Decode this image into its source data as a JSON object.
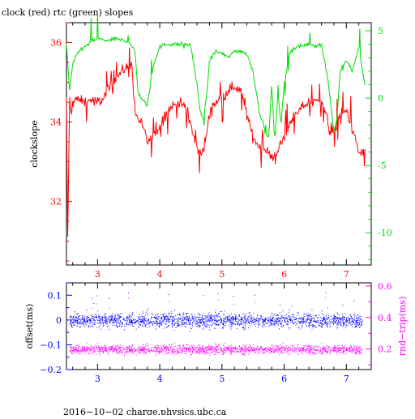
{
  "colors": {
    "frame": "#000000",
    "clock": "#ff0000",
    "rtc": "#00dd00",
    "offset": "#0000ff",
    "roundtrip": "#ff00ff"
  },
  "chart_data": [
    {
      "type": "line",
      "title": "clock (red) rtc (green) slopes",
      "ylabel": "clockslope",
      "x_ticks": [
        "3",
        "4",
        "5",
        "6",
        "7"
      ],
      "x_tick_values": [
        3,
        4,
        5,
        6,
        7
      ],
      "xlim": [
        2.5,
        7.4
      ],
      "y_left_ticks": [
        "32",
        "34",
        "36"
      ],
      "y_left_tick_values": [
        32,
        34,
        36
      ],
      "ylim_left": [
        30.4,
        36.5
      ],
      "y_right_ticks": [
        "5",
        "0",
        "-5",
        "-10"
      ],
      "y_right_tick_values": [
        5,
        0,
        -5,
        -10
      ],
      "ylim_right": [
        -12.4,
        5.6
      ],
      "series": [
        {
          "name": "clock",
          "axis": "left",
          "x": [
            2.5,
            2.52,
            2.55,
            2.58,
            2.62,
            2.7,
            2.8,
            2.9,
            3.0,
            3.1,
            3.2,
            3.3,
            3.4,
            3.5,
            3.55,
            3.6,
            3.7,
            3.8,
            3.9,
            4.0,
            4.1,
            4.2,
            4.3,
            4.4,
            4.5,
            4.6,
            4.7,
            4.8,
            4.9,
            5.0,
            5.1,
            5.2,
            5.3,
            5.4,
            5.5,
            5.6,
            5.7,
            5.8,
            5.9,
            6.0,
            6.1,
            6.2,
            6.3,
            6.4,
            6.5,
            6.6,
            6.7,
            6.75,
            6.8,
            6.9,
            7.0,
            7.1,
            7.2,
            7.3
          ],
          "values": [
            34.55,
            31.0,
            34.6,
            34.1,
            34.6,
            34.55,
            34.5,
            34.55,
            34.5,
            34.6,
            34.9,
            35.1,
            35.3,
            35.4,
            35.5,
            34.2,
            34.0,
            33.5,
            33.6,
            33.9,
            34.2,
            34.4,
            34.5,
            34.4,
            33.9,
            33.3,
            33.2,
            34.2,
            34.5,
            34.6,
            34.8,
            34.9,
            34.8,
            34.2,
            33.6,
            33.4,
            33.3,
            33.1,
            33.3,
            33.6,
            34.0,
            34.2,
            34.4,
            34.5,
            34.5,
            34.6,
            34.0,
            33.7,
            33.8,
            34.2,
            34.3,
            33.8,
            33.2,
            33.3
          ]
        },
        {
          "name": "rtc",
          "axis": "right",
          "x": [
            2.5,
            2.55,
            2.6,
            2.7,
            2.8,
            2.9,
            3.0,
            3.1,
            3.2,
            3.3,
            3.4,
            3.5,
            3.6,
            3.65,
            3.7,
            3.8,
            3.9,
            4.0,
            4.1,
            4.2,
            4.3,
            4.4,
            4.5,
            4.6,
            4.65,
            4.7,
            4.75,
            4.8,
            4.9,
            5.0,
            5.1,
            5.2,
            5.3,
            5.4,
            5.5,
            5.6,
            5.7,
            5.75,
            5.8,
            5.85,
            5.9,
            5.95,
            6.0,
            6.1,
            6.2,
            6.3,
            6.4,
            6.5,
            6.6,
            6.7,
            6.8,
            6.85,
            6.9,
            7.0,
            7.1,
            7.2,
            7.3
          ],
          "values": [
            4.0,
            0.5,
            2.5,
            3.5,
            3.8,
            4.2,
            4.4,
            4.3,
            4.3,
            4.4,
            4.3,
            4.2,
            3.5,
            0.5,
            0.0,
            -0.5,
            2.5,
            3.8,
            4.0,
            4.0,
            4.0,
            4.0,
            3.9,
            1.0,
            -1.0,
            -1.5,
            0.0,
            2.8,
            3.5,
            3.3,
            3.0,
            3.5,
            3.5,
            3.3,
            2.0,
            -1.0,
            -2.5,
            -3.0,
            1.0,
            -3.5,
            0.5,
            -2.0,
            1.0,
            3.5,
            3.8,
            3.9,
            4.0,
            3.9,
            4.0,
            1.5,
            -2.5,
            -1.5,
            2.0,
            2.8,
            2.0,
            3.8,
            1.0
          ]
        }
      ]
    },
    {
      "type": "scatter",
      "ylabel_left": "offset(ms)",
      "ylabel_right": "rnd−trip(ms)",
      "x_ticks": [
        "3",
        "4",
        "5",
        "6",
        "7"
      ],
      "x_tick_values": [
        3,
        4,
        5,
        6,
        7
      ],
      "xlim": [
        2.5,
        7.4
      ],
      "y_left_ticks": [
        "0.1",
        "0",
        "−0.1",
        "−0.2"
      ],
      "y_left_tick_values": [
        0.1,
        0,
        -0.1,
        -0.2
      ],
      "ylim_left": [
        -0.2,
        0.15
      ],
      "y_right_ticks": [
        "0.6",
        "0.4",
        "0.2"
      ],
      "y_right_tick_values": [
        0.6,
        0.4,
        0.2
      ],
      "ylim_right": [
        0.07,
        0.62
      ],
      "series": [
        {
          "name": "offset",
          "axis": "left",
          "x_range": [
            2.55,
            7.25
          ],
          "center": 0.0,
          "spread": 0.03,
          "outlier_max": 0.12
        },
        {
          "name": "round trip",
          "axis": "right",
          "x_range": [
            2.55,
            7.25
          ],
          "center": 0.2,
          "spread": 0.03,
          "outlier_max": 0.55
        }
      ]
    }
  ],
  "footer": "2016−10−02 charge.physics.ubc.ca"
}
